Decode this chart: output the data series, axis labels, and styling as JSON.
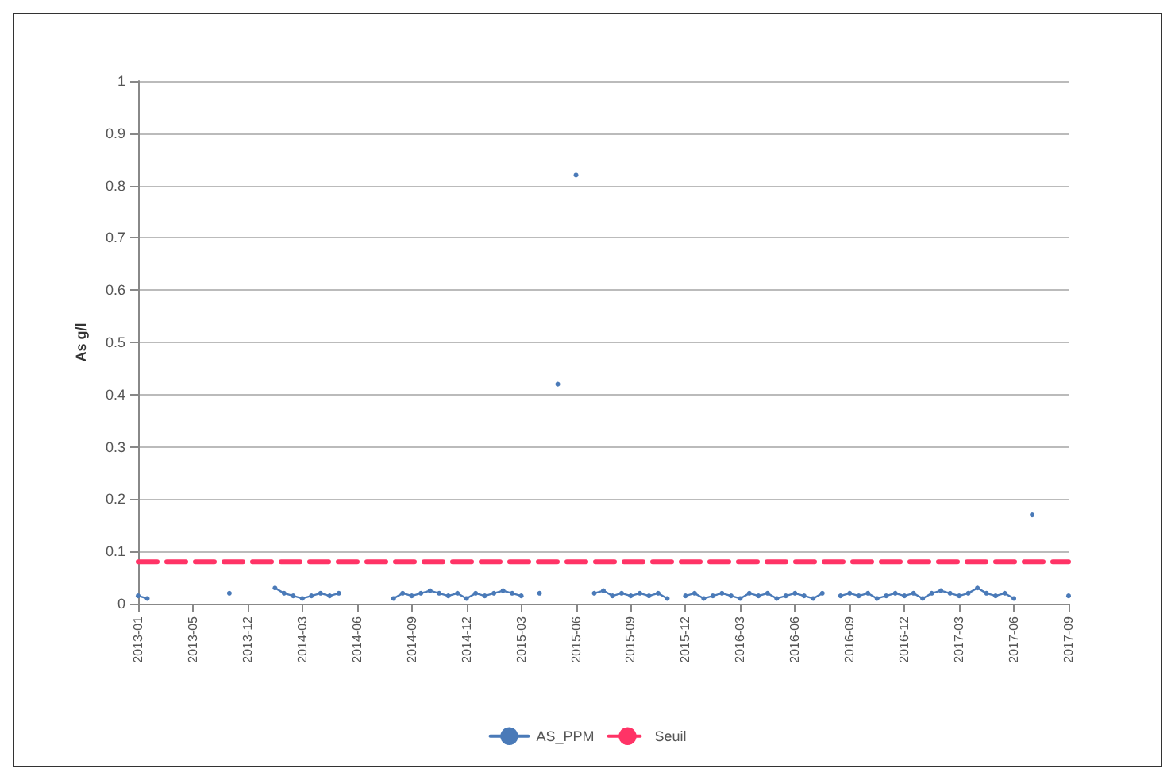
{
  "chart_data": {
    "type": "line",
    "ylabel": "As g/l",
    "categories": [
      "2013-01",
      null,
      null,
      null,
      null,
      null,
      "2013-05",
      null,
      null,
      null,
      null,
      null,
      "2013-12",
      null,
      null,
      null,
      null,
      null,
      "2014-03",
      null,
      null,
      null,
      null,
      null,
      "2014-06",
      null,
      null,
      null,
      null,
      null,
      "2014-09",
      null,
      null,
      null,
      null,
      null,
      "2014-12",
      null,
      null,
      null,
      null,
      null,
      "2015-03",
      null,
      null,
      null,
      null,
      null,
      "2015-06",
      null,
      null,
      null,
      null,
      null,
      "2015-09",
      null,
      null,
      null,
      null,
      null,
      "2015-12",
      null,
      null,
      null,
      null,
      null,
      "2016-03",
      null,
      null,
      null,
      null,
      null,
      "2016-06",
      null,
      null,
      null,
      null,
      null,
      "2016-09",
      null,
      null,
      null,
      null,
      null,
      "2016-12",
      null,
      null,
      null,
      null,
      null,
      "2017-03",
      null,
      null,
      null,
      null,
      null,
      "2017-06",
      null,
      null,
      null,
      null,
      null,
      "2017-09"
    ],
    "series": [
      {
        "name": "AS_PPM",
        "color": "#4a7ab8",
        "marker": "circle",
        "line_style": "solid",
        "values": [
          0.015,
          0.01,
          null,
          null,
          null,
          null,
          null,
          null,
          null,
          null,
          0.02,
          null,
          null,
          null,
          null,
          0.03,
          0.02,
          0.015,
          0.01,
          0.015,
          0.02,
          0.015,
          0.02,
          null,
          null,
          null,
          null,
          null,
          0.01,
          0.02,
          0.015,
          0.02,
          0.025,
          0.02,
          0.015,
          0.02,
          0.01,
          0.02,
          0.015,
          0.02,
          0.025,
          0.02,
          0.015,
          null,
          0.02,
          null,
          0.42,
          null,
          0.82,
          null,
          0.02,
          0.025,
          0.015,
          0.02,
          0.015,
          0.02,
          0.015,
          0.02,
          0.01,
          null,
          0.015,
          0.02,
          0.01,
          0.015,
          0.02,
          0.015,
          0.01,
          0.02,
          0.015,
          0.02,
          0.01,
          0.015,
          0.02,
          0.015,
          0.01,
          0.02,
          null,
          0.015,
          0.02,
          0.015,
          0.02,
          0.01,
          0.015,
          0.02,
          0.015,
          0.02,
          0.01,
          0.02,
          0.025,
          0.02,
          0.015,
          0.02,
          0.03,
          0.02,
          0.015,
          0.02,
          0.01,
          null,
          0.17,
          null,
          null,
          null,
          0.015
        ]
      },
      {
        "name": "Seuil",
        "color": "#ff3366",
        "marker": "none",
        "line_style": "dashed",
        "values": [
          0.08,
          0.08,
          0.08,
          0.08,
          0.08,
          0.08,
          0.08,
          0.08,
          0.08,
          0.08,
          0.08,
          0.08,
          0.08,
          0.08,
          0.08,
          0.08,
          0.08,
          0.08,
          0.08,
          0.08,
          0.08,
          0.08,
          0.08,
          0.08,
          0.08,
          0.08,
          0.08,
          0.08,
          0.08,
          0.08,
          0.08,
          0.08,
          0.08,
          0.08,
          0.08,
          0.08,
          0.08,
          0.08,
          0.08,
          0.08,
          0.08,
          0.08,
          0.08,
          0.08,
          0.08,
          0.08,
          0.08,
          0.08,
          0.08,
          0.08,
          0.08,
          0.08,
          0.08,
          0.08,
          0.08,
          0.08,
          0.08,
          0.08,
          0.08,
          0.08,
          0.08,
          0.08,
          0.08,
          0.08,
          0.08,
          0.08,
          0.08,
          0.08,
          0.08,
          0.08,
          0.08,
          0.08,
          0.08,
          0.08,
          0.08,
          0.08,
          0.08,
          0.08,
          0.08,
          0.08,
          0.08,
          0.08,
          0.08,
          0.08,
          0.08,
          0.08,
          0.08,
          0.08,
          0.08,
          0.08,
          0.08,
          0.08,
          0.08,
          0.08,
          0.08,
          0.08,
          0.08,
          0.08,
          0.08,
          0.08,
          0.08,
          0.08,
          0.08
        ]
      }
    ],
    "ylim": [
      0,
      1
    ],
    "yticks": [
      0,
      0.1,
      0.2,
      0.3,
      0.4,
      0.5,
      0.6,
      0.7,
      0.8,
      0.9,
      1
    ],
    "grid": "y",
    "legend": "bottom"
  }
}
